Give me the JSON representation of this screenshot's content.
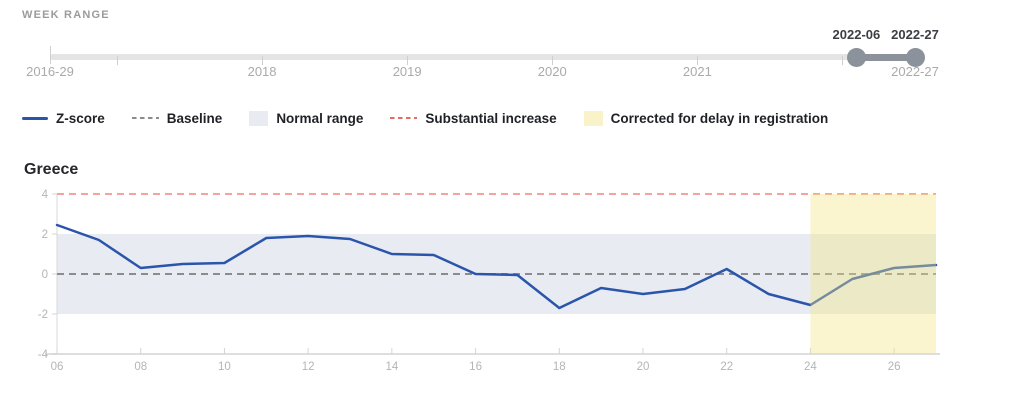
{
  "week_range": {
    "label": "WEEK RANGE",
    "start_label": "2016-29",
    "end_label": "2022-27",
    "start": {
      "year": 2016,
      "week": 29
    },
    "end": {
      "year": 2022,
      "week": 27
    },
    "year_ticks": [
      2017,
      2018,
      2019,
      2020,
      2021,
      2022
    ],
    "labeled_years": [
      2018,
      2019,
      2020,
      2021
    ],
    "selected": {
      "start_label": "2022-06",
      "end_label": "2022-27",
      "start": {
        "year": 2022,
        "week": 6
      },
      "end": {
        "year": 2022,
        "week": 27
      }
    }
  },
  "legend": [
    {
      "label": "Z-score",
      "type": "line",
      "color": "#2b55ab"
    },
    {
      "label": "Baseline",
      "type": "dash",
      "color": "#8c8c8c"
    },
    {
      "label": "Normal range",
      "type": "box",
      "color": "#e8ecf2"
    },
    {
      "label": "Substantial increase",
      "type": "dash",
      "color": "#e56a60"
    },
    {
      "label": "Corrected for delay in registration",
      "type": "box",
      "color": "#faf3c9"
    }
  ],
  "chart_data": {
    "type": "line",
    "title": "Greece",
    "x_weeks": [
      6,
      7,
      8,
      9,
      10,
      11,
      12,
      13,
      14,
      15,
      16,
      17,
      18,
      19,
      20,
      21,
      22,
      23,
      24,
      25,
      26,
      27
    ],
    "series": [
      {
        "name": "Z-score",
        "values": [
          2.45,
          1.7,
          0.3,
          0.5,
          0.55,
          1.8,
          1.9,
          1.75,
          1.0,
          0.95,
          0.0,
          -0.05,
          -1.7,
          -0.7,
          -1.0,
          -0.75,
          0.25,
          -1.0,
          -1.55,
          -0.25,
          0.3,
          0.45
        ]
      }
    ],
    "x_tick_weeks": [
      6,
      8,
      10,
      12,
      14,
      16,
      18,
      20,
      22,
      24,
      26
    ],
    "x_tick_labels": [
      "06",
      "08",
      "10",
      "12",
      "14",
      "16",
      "18",
      "20",
      "22",
      "24",
      "26"
    ],
    "y_ticks": [
      4,
      2,
      0,
      -2,
      -4
    ],
    "ylim": [
      -4,
      4
    ],
    "xlim": [
      6,
      27
    ],
    "baseline_value": 0,
    "substantial_increase_value": 4,
    "normal_range": {
      "from": -2,
      "to": 2
    },
    "corrected_region": {
      "from_week": 24,
      "to_week": 27
    },
    "grid": false,
    "legend_position": "top"
  },
  "colors": {
    "zscore_line": "#2b55ab",
    "baseline_line": "#8c8c8c",
    "normal_range_fill": "#e8ecf2",
    "substantial_increase_line": "#f5a39b",
    "corrected_fill_rgb": "243,228,128",
    "corrected_fill_alpha": "0.38",
    "track": "#e4e4e4",
    "selected_range": "#8b929b",
    "axis_text": "#b5b5b5",
    "axis_line": "#dedede"
  }
}
